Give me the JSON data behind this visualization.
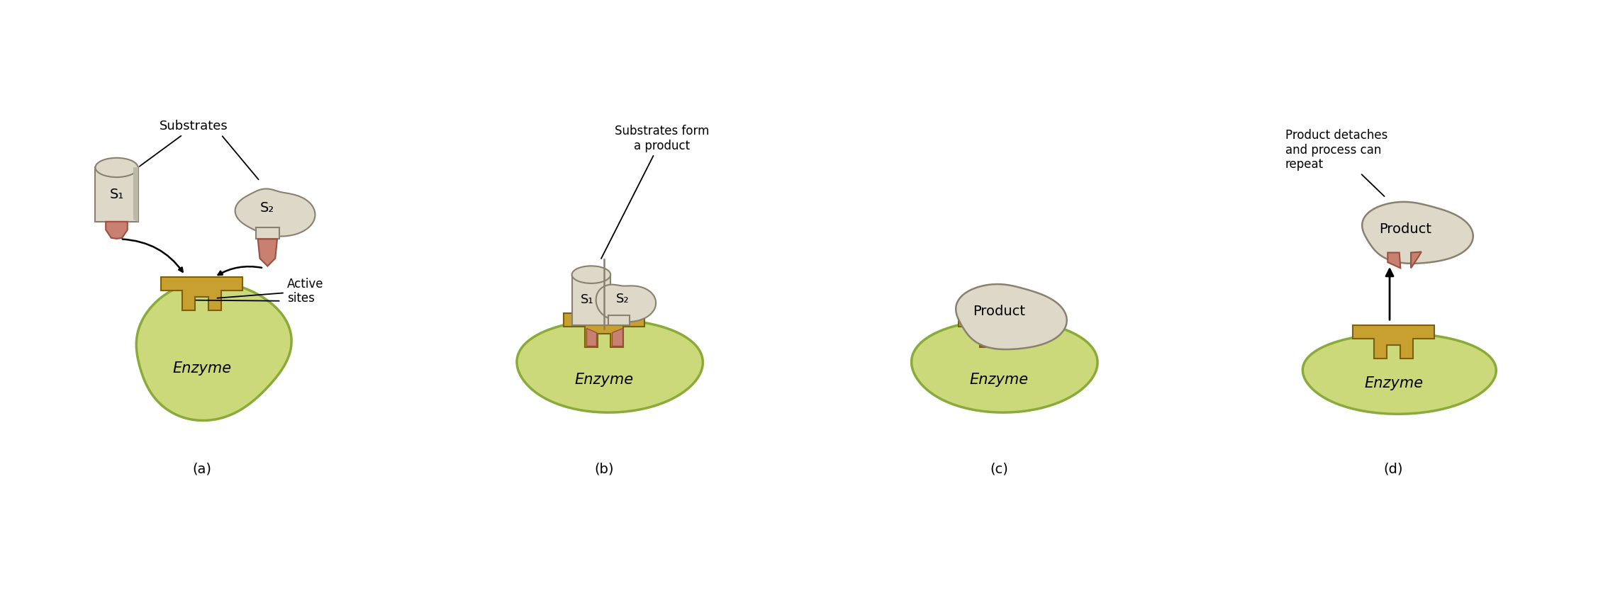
{
  "background_color": "#ffffff",
  "enzyme_fill": "#ccd97a",
  "enzyme_fill2": "#d8e890",
  "enzyme_edge": "#8aaa3a",
  "active_site_fill": "#c8a030",
  "active_site_edge": "#7a6010",
  "substrate_fill": "#ddd8c8",
  "substrate_edge": "#8a8070",
  "substrate_shadow": "#bcb8a8",
  "plug_fill": "#c88070",
  "plug_edge": "#9a5040",
  "text_color": "#000000",
  "panels": [
    "(a)",
    "(b)",
    "(c)",
    "(d)"
  ],
  "enzyme_label": "Enzyme",
  "active_sites_label": "Active\nsites",
  "product_label": "Product",
  "s1_label": "S₁",
  "s2_label": "S₂",
  "substrates_label": "Substrates",
  "subst_form_label": "Substrates form\na product",
  "detach_label": "Product detaches\nand process can\nrepeat"
}
